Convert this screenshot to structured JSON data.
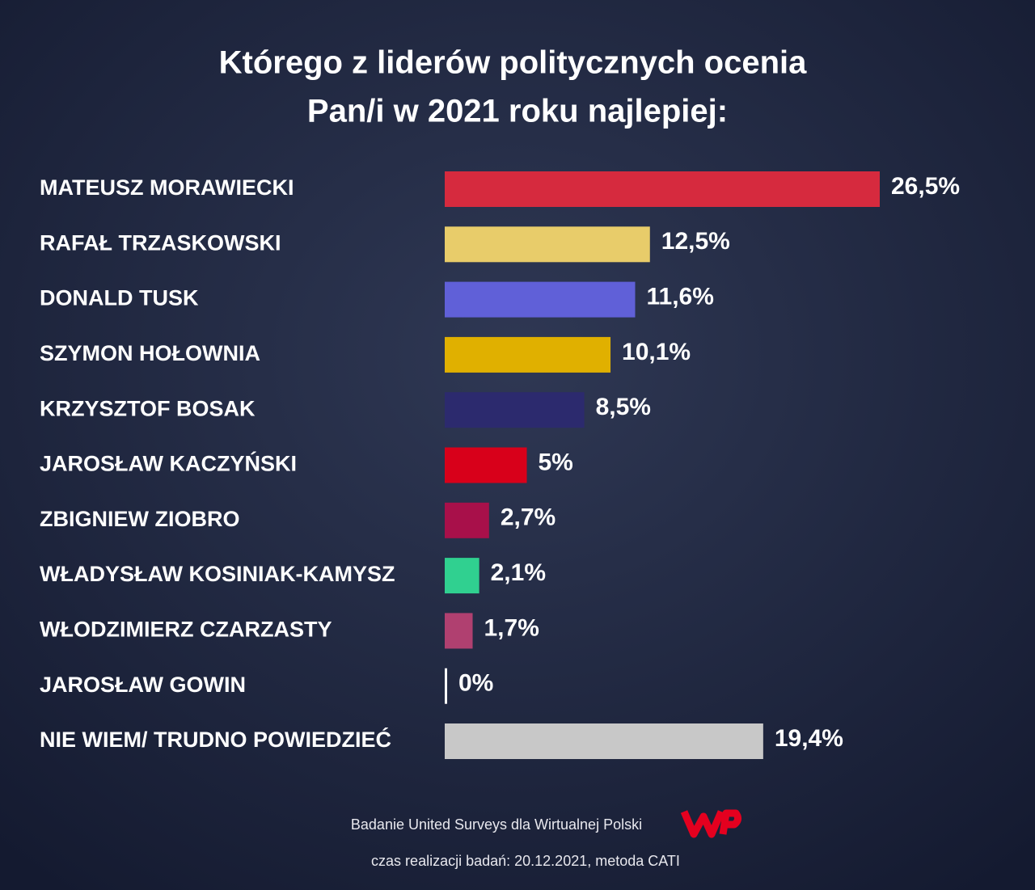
{
  "chart_data": {
    "type": "bar",
    "title_lines": [
      "Którego z liderów politycznych ocenia",
      "Pan/i w 2021 roku najlepiej:"
    ],
    "categories": [
      "MATEUSZ MORAWIECKI",
      "RAFAŁ TRZASKOWSKI",
      "DONALD TUSK",
      "SZYMON HOŁOWNIA",
      "KRZYSZTOF BOSAK",
      "JAROSŁAW KACZYŃSKI",
      "ZBIGNIEW ZIOBRO",
      "WŁADYSŁAW KOSINIAK-KAMYSZ",
      "WŁODZIMIERZ CZARZASTY",
      "JAROSŁAW GOWIN",
      "NIE WIEM/ TRUDNO POWIEDZIEĆ"
    ],
    "values": [
      26.5,
      12.5,
      11.6,
      10.1,
      8.5,
      5,
      2.7,
      2.1,
      1.7,
      0,
      19.4
    ],
    "value_labels": [
      "26,5%",
      "12,5%",
      "11,6%",
      "10,1%",
      "8,5%",
      "5%",
      "2,7%",
      "2,1%",
      "1,7%",
      "0%",
      "19,4%"
    ],
    "colors": [
      "#d62a3e",
      "#e8cc6a",
      "#6060d8",
      "#e0b000",
      "#2c2a6e",
      "#d8001a",
      "#a8104a",
      "#30d090",
      "#b04070",
      "#ffffff",
      "#c8c8c8"
    ],
    "source": "Badanie United Surveys dla Wirtualnej Polski",
    "note": "czas realizacji badań: 20.12.2021, metoda CATI"
  }
}
